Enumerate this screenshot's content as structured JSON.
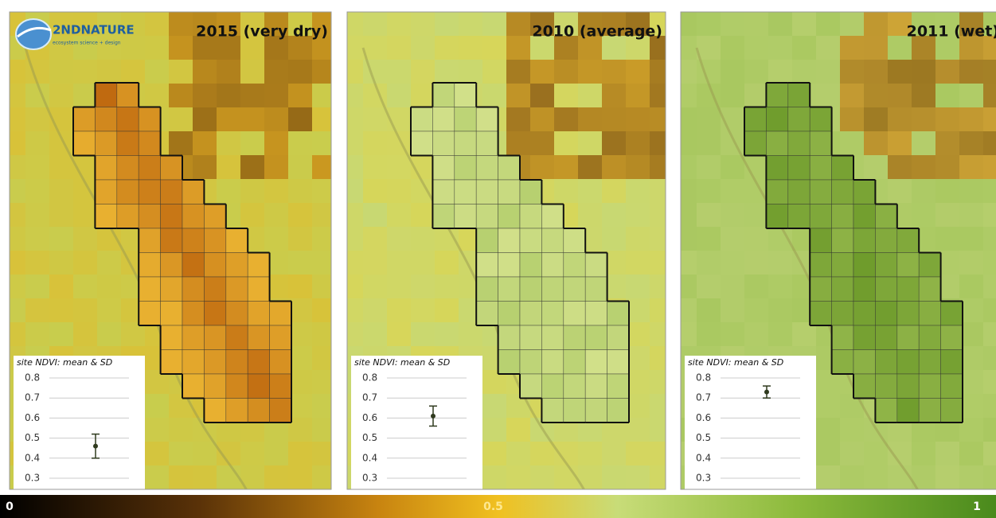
{
  "logo": {
    "text": "2NDNATURE",
    "tagline": "ecosystem science + design"
  },
  "panels": [
    {
      "title": "2015 (very dry)"
    },
    {
      "title": "2010 (average)"
    },
    {
      "title": "2011 (wet)"
    }
  ],
  "chart_data": [
    {
      "type": "errorbar",
      "title": "site NDVI: mean & SD",
      "values": [
        0.46
      ],
      "errors": [
        0.06
      ],
      "color": "#2f3a1e",
      "ylim": [
        0.3,
        0.8
      ],
      "yticks": [
        0.3,
        0.4,
        0.5,
        0.6,
        0.7,
        0.8
      ],
      "grid": true
    },
    {
      "type": "errorbar",
      "title": "site NDVI: mean & SD",
      "values": [
        0.61
      ],
      "errors": [
        0.05
      ],
      "color": "#2f3a1e",
      "ylim": [
        0.3,
        0.8
      ],
      "yticks": [
        0.3,
        0.4,
        0.5,
        0.6,
        0.7,
        0.8
      ],
      "grid": true
    },
    {
      "type": "errorbar",
      "title": "site NDVI: mean & SD",
      "values": [
        0.73
      ],
      "errors": [
        0.03
      ],
      "color": "#2f3a1e",
      "ylim": [
        0.3,
        0.8
      ],
      "yticks": [
        0.3,
        0.4,
        0.5,
        0.6,
        0.7,
        0.8
      ],
      "grid": true
    }
  ],
  "colorbar": {
    "ticks": [
      0,
      0.5,
      1
    ]
  }
}
